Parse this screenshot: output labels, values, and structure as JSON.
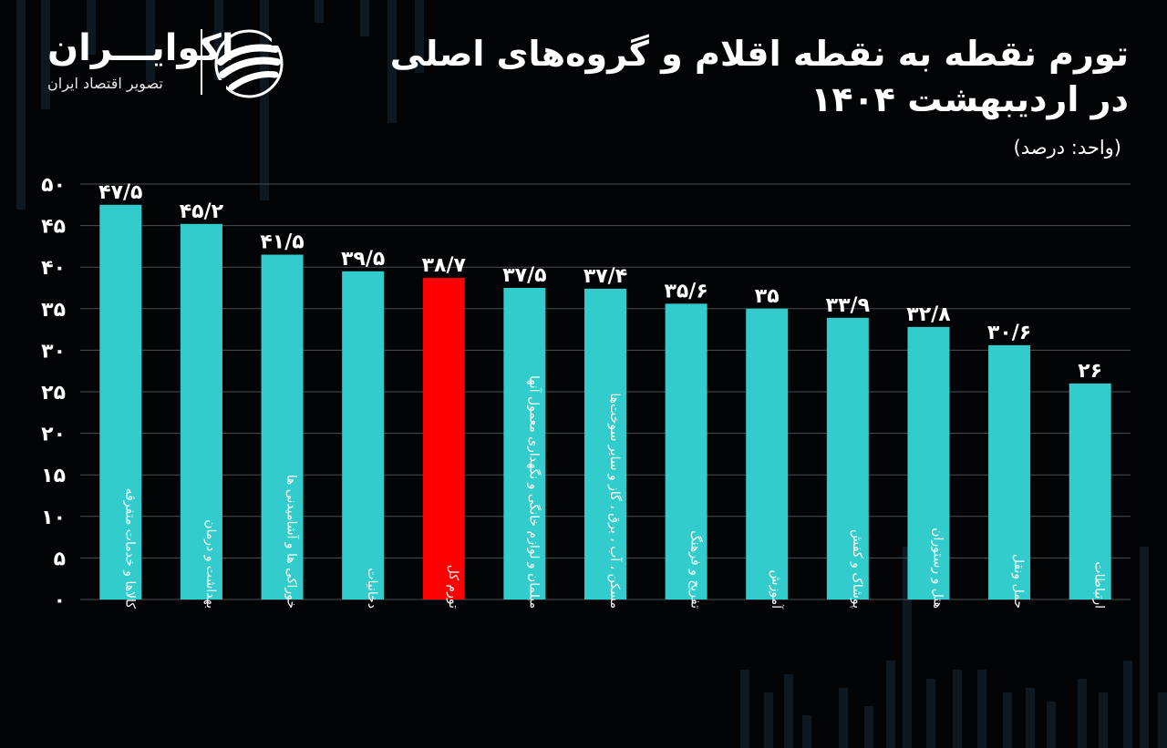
{
  "header": {
    "title_line1": "تورم نقطه به نقطه اقلام و گروه‌های اصلی",
    "title_line2": "در اردیبهشت ۱۴۰۴",
    "unit": "(واحد: درصد)"
  },
  "brand": {
    "name": "اکوایـــران",
    "tagline": "تصویر اقتصاد ایران",
    "logo_icon": "ecoiran-swirl-icon"
  },
  "colors": {
    "background": "#030405",
    "bar": "#33cccc",
    "highlight_bar": "#ff0000",
    "text": "#ffffff",
    "grid": "#4a4f54"
  },
  "chart_data": {
    "type": "bar",
    "categories": [
      "کالاها و خدمات متفرقه",
      "بهداشت و درمان",
      "خوراکی ها و آشامیدنی ها",
      "دخانیات",
      "تورم کل",
      "مبلمان و لوازم خانگی و نگهداری معمول آنها",
      "مسکن ، آب ، برق ، گاز و سایر سوخت‌ها",
      "تفریح و فرهنگ",
      "آموزش",
      "پوشاک و کفش",
      "هتل و رستوران",
      "حمل ونقل",
      "ارتباطات"
    ],
    "values": [
      47.5,
      45.2,
      41.5,
      39.5,
      38.7,
      37.5,
      37.4,
      35.6,
      35,
      33.9,
      32.8,
      30.6,
      26
    ],
    "value_labels": [
      "۴۷/۵",
      "۴۵/۲",
      "۴۱/۵",
      "۳۹/۵",
      "۳۸/۷",
      "۳۷/۵",
      "۳۷/۴",
      "۳۵/۶",
      "۳۵",
      "۳۳/۹",
      "۳۲/۸",
      "۳۰/۶",
      "۲۶"
    ],
    "highlight_index": 4,
    "ylim": [
      0,
      50
    ],
    "yticks": [
      0,
      5,
      10,
      15,
      20,
      25,
      30,
      35,
      40,
      45,
      50
    ],
    "ytick_labels": [
      "۰",
      "۵",
      "۱۰",
      "۱۵",
      "۲۰",
      "۲۵",
      "۳۰",
      "۳۵",
      "۴۰",
      "۴۵",
      "۵۰"
    ],
    "grid": true,
    "legend": "none",
    "xlabel": "",
    "ylabel": ""
  }
}
